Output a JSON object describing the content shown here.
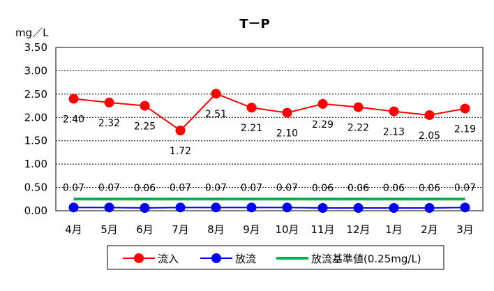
{
  "chart_data": {
    "type": "line",
    "title": "T－P",
    "ylabel": "mg／L",
    "xlabel": "",
    "ylim": [
      0,
      3.5
    ],
    "yticks": [
      "0.00",
      "0.50",
      "1.00",
      "1.50",
      "2.00",
      "2.50",
      "3.00",
      "3.50"
    ],
    "ytick_values": [
      0,
      0.5,
      1.0,
      1.5,
      2.0,
      2.5,
      3.0,
      3.5
    ],
    "grid": "horizontal dotted",
    "legend_position": "bottom",
    "categories": [
      "4月",
      "5月",
      "6月",
      "7月",
      "8月",
      "9月",
      "10月",
      "11月",
      "12月",
      "1月",
      "2月",
      "3月"
    ],
    "series": [
      {
        "name": "流入",
        "color": "#ff0000",
        "marker": "circle",
        "values": [
          2.4,
          2.32,
          2.25,
          1.72,
          2.51,
          2.21,
          2.1,
          2.29,
          2.22,
          2.13,
          2.05,
          2.19
        ],
        "labels": [
          "2.40",
          "2.32",
          "2.25",
          "1.72",
          "2.51",
          "2.21",
          "2.10",
          "2.29",
          "2.22",
          "2.13",
          "2.05",
          "2.19"
        ]
      },
      {
        "name": "放流",
        "color": "#0000ff",
        "marker": "circle",
        "values": [
          0.07,
          0.07,
          0.06,
          0.07,
          0.07,
          0.07,
          0.07,
          0.06,
          0.06,
          0.06,
          0.06,
          0.07
        ],
        "labels": [
          "0.07",
          "0.07",
          "0.06",
          "0.07",
          "0.07",
          "0.07",
          "0.07",
          "0.06",
          "0.06",
          "0.06",
          "0.06",
          "0.07"
        ]
      },
      {
        "name": "放流基準値(0.25mg/L)",
        "color": "#00b050",
        "marker": "none",
        "values": [
          0.25,
          0.25,
          0.25,
          0.25,
          0.25,
          0.25,
          0.25,
          0.25,
          0.25,
          0.25,
          0.25,
          0.25
        ]
      }
    ]
  }
}
